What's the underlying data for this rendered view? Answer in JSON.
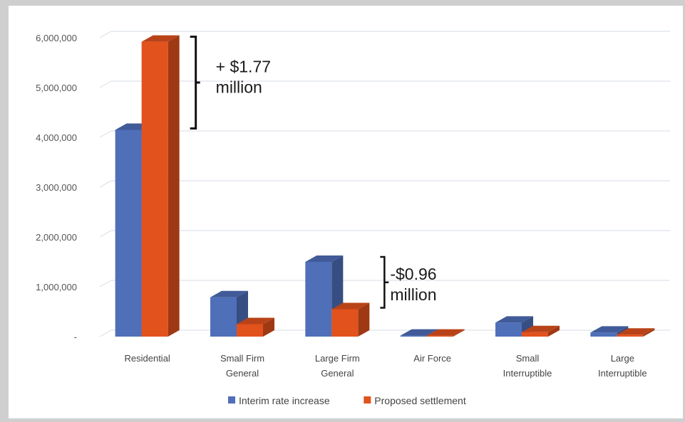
{
  "chart_data": {
    "type": "bar",
    "style": "3d-clustered-column",
    "categories": [
      "Residential",
      "Small Firm\nGeneral",
      "Large Firm\nGeneral",
      "Air Force",
      "Small\nInterruptible",
      "Large\nInterruptible"
    ],
    "series": [
      {
        "name": "Interim rate increase",
        "color": "#4f6fb9",
        "values": [
          4150000,
          790000,
          1500000,
          20000,
          280000,
          80000
        ]
      },
      {
        "name": "Proposed settlement",
        "color": "#e2521d",
        "values": [
          5920000,
          250000,
          550000,
          20000,
          90000,
          40000
        ]
      }
    ],
    "ylim": [
      0,
      6000000
    ],
    "yticks": [
      0,
      1000000,
      2000000,
      3000000,
      4000000,
      5000000,
      6000000
    ],
    "ytick_labels": [
      "-",
      "1,000,000",
      "2,000,000",
      "3,000,000",
      "4,000,000",
      "5,000,000",
      "6,000,000"
    ],
    "grid": true,
    "legend": "bottom",
    "annotations": [
      {
        "lines": [
          "+ $1.77",
          "million"
        ],
        "category": "Residential"
      },
      {
        "lines": [
          "-$0.96",
          "million"
        ],
        "category": "Large Firm\nGeneral"
      }
    ]
  }
}
